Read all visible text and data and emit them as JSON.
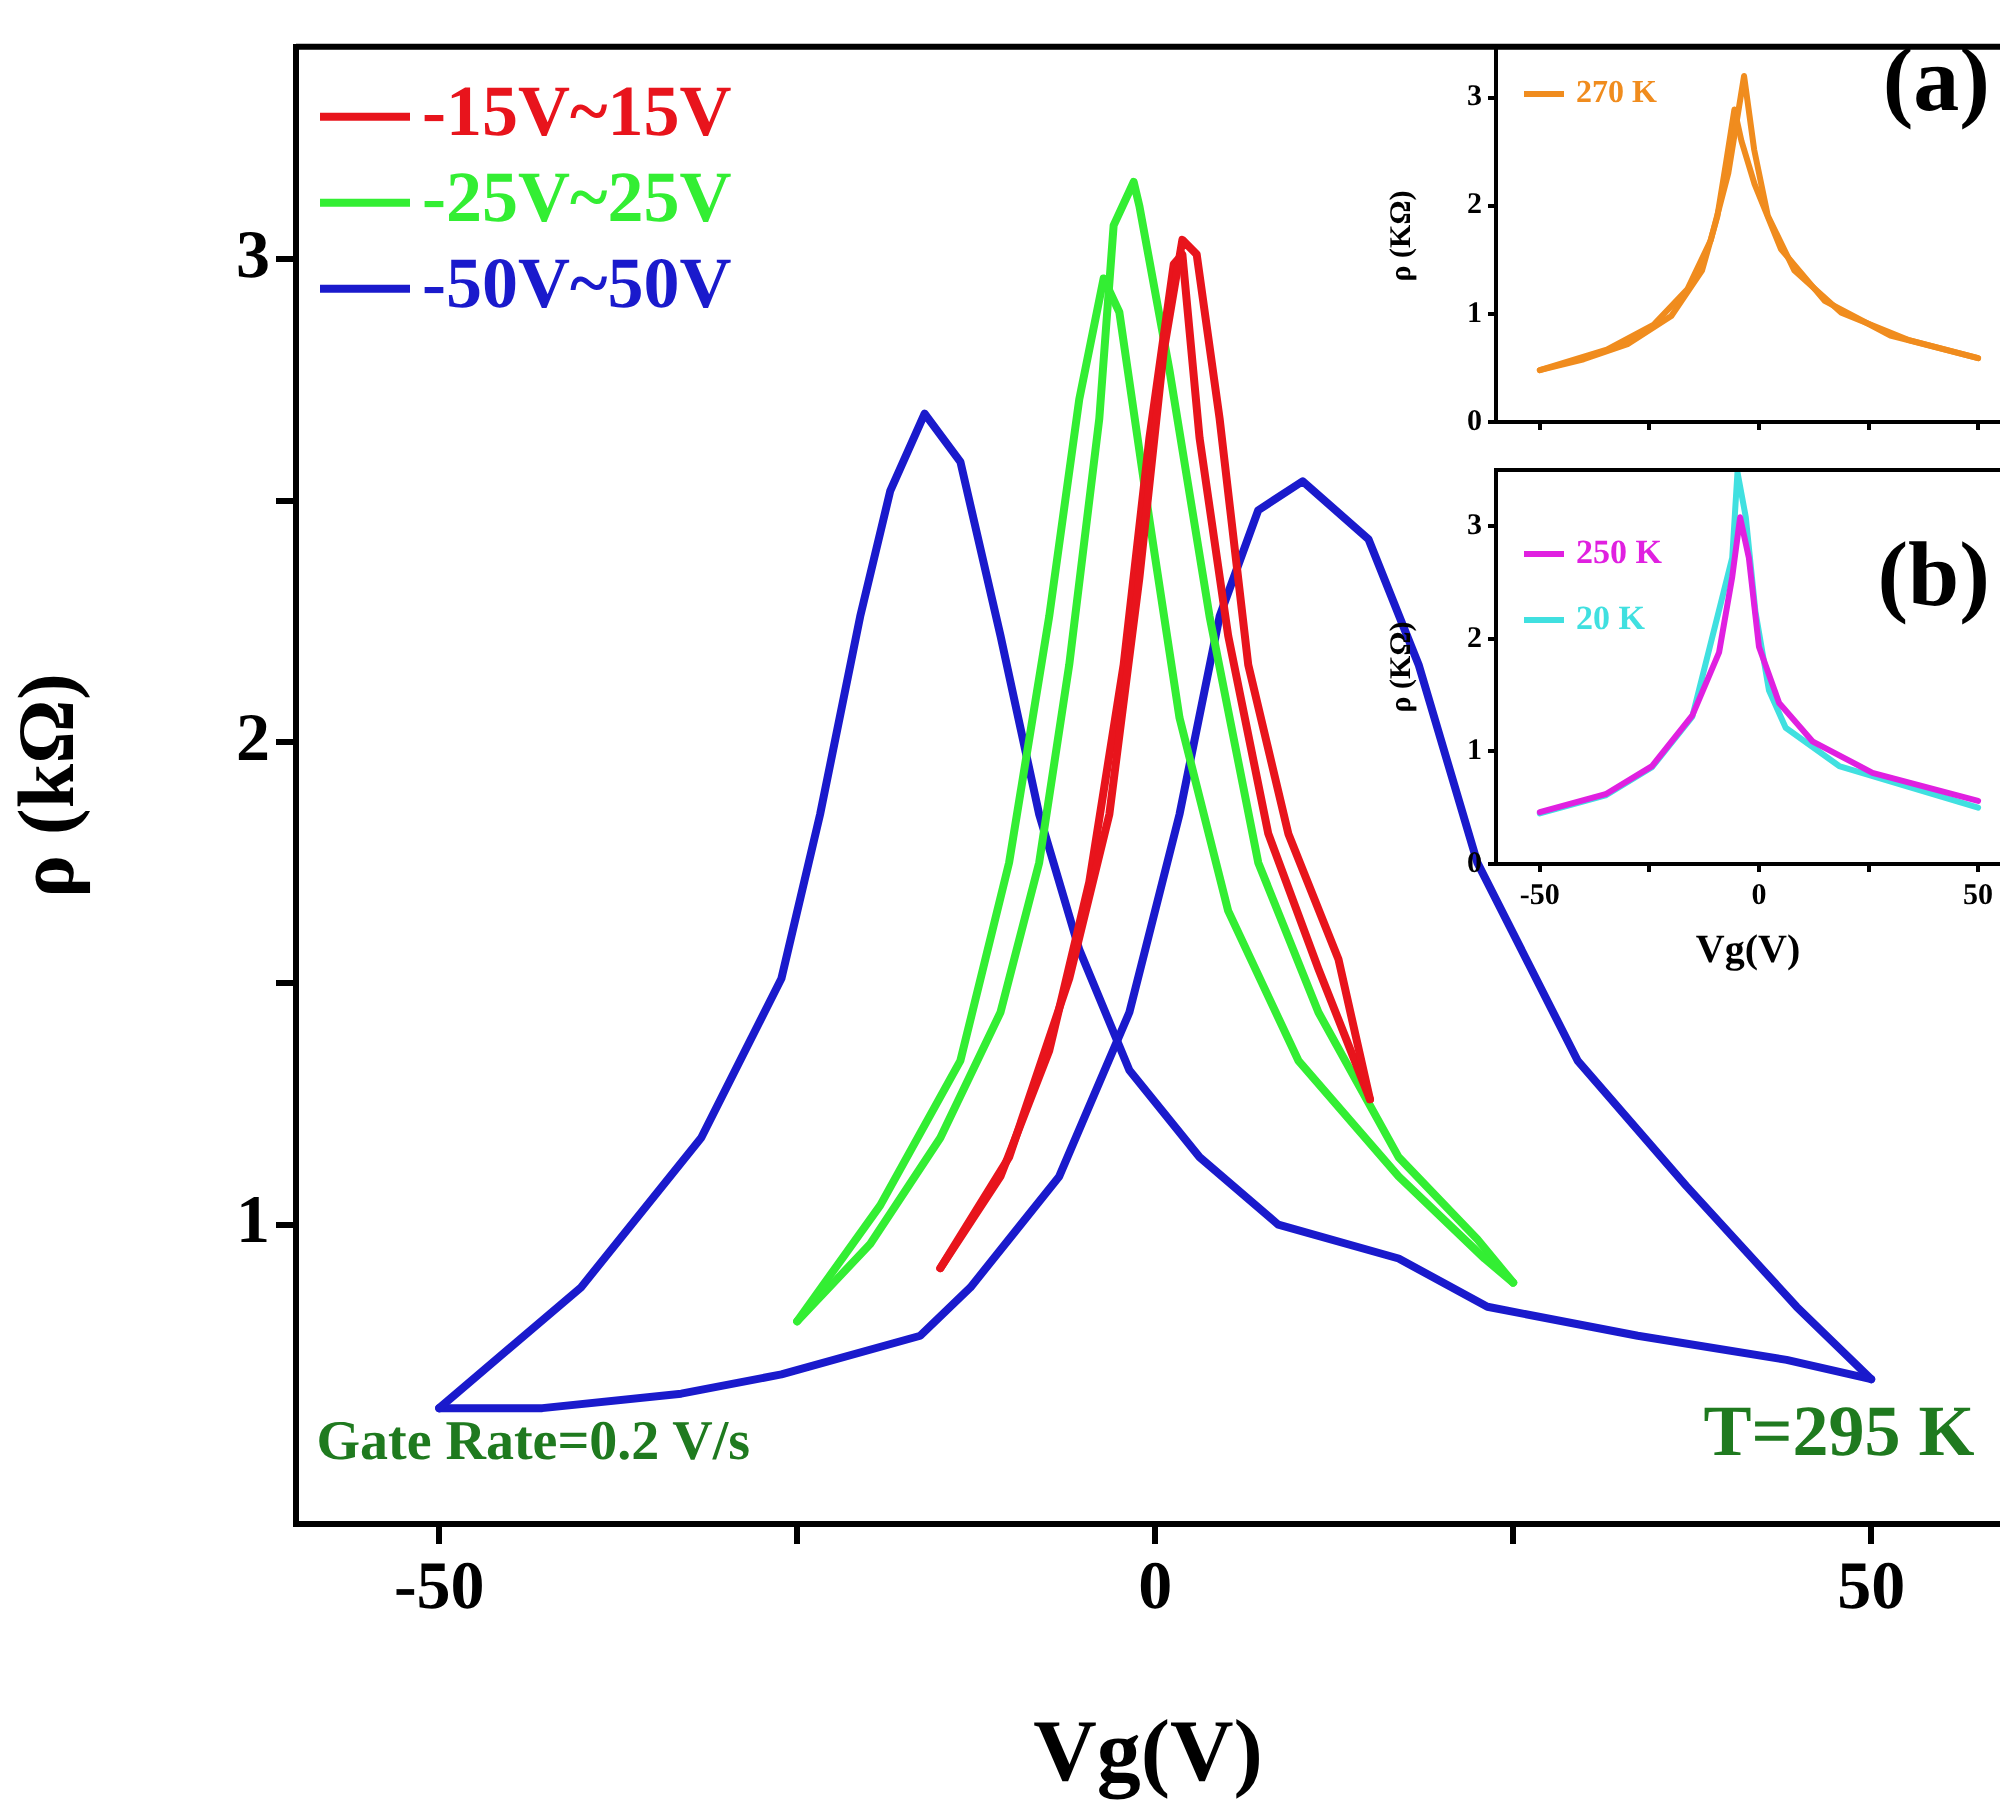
{
  "chart_data": [
    {
      "type": "line",
      "xlabel": "Vg(V)",
      "ylabel": "ρ (kΩ)",
      "xlim": [
        -60,
        59
      ],
      "ylim": [
        0.38,
        3.44
      ],
      "xticks": [
        -50,
        {
          "value": -25,
          "label": null
        },
        0,
        {
          "value": 25,
          "label": null
        },
        50
      ],
      "yticks": [
        1,
        {
          "value": 1.5,
          "label": null
        },
        2,
        {
          "value": 2.5,
          "label": null
        },
        3
      ],
      "legend": "top left",
      "annotations": [
        "Gate Rate=0.2 V/s",
        "T=295 K"
      ],
      "series": [
        {
          "name": "-15V~15V",
          "color": "#e8141c",
          "x": [
            -15,
            -10.2,
            -6,
            -3.2,
            -1.1,
            0.6,
            1.9,
            2.9,
            4.5,
            6.5,
            9.3,
            12.8,
            15
          ],
          "values": [
            0.91,
            1.14,
            1.51,
            1.85,
            2.34,
            2.81,
            3.04,
            3.01,
            2.67,
            2.16,
            1.81,
            1.55,
            1.26
          ]
        },
        {
          "color": "#e8141c",
          "x": [
            -15,
            -10.8,
            -7.4,
            -4.6,
            -2.2,
            -0.4,
            1.3,
            1.9,
            3.1,
            5.1,
            7.9,
            11.4,
            15
          ],
          "values": [
            0.91,
            1.1,
            1.36,
            1.71,
            2.16,
            2.63,
            2.99,
            3.01,
            2.63,
            2.22,
            1.81,
            1.53,
            1.26
          ]
        },
        {
          "name": "-25V~25V",
          "color": "#33ee33",
          "x": [
            -25,
            -19.2,
            -13.6,
            -10.2,
            -7.4,
            -5.3,
            -3.6,
            -2.5,
            -0.4,
            1.7,
            5.1,
            10,
            17,
            23,
            25
          ],
          "values": [
            0.8,
            1.04,
            1.34,
            1.75,
            2.26,
            2.71,
            2.96,
            2.89,
            2.46,
            2.05,
            1.65,
            1.34,
            1.1,
            0.93,
            0.88
          ]
        },
        {
          "color": "#33ee33",
          "x": [
            -25,
            -19.9,
            -15,
            -10.8,
            -8.1,
            -6,
            -3.9,
            -2.9,
            -1.5,
            -1.1,
            1,
            3.8,
            7.2,
            11.4,
            17,
            22.5,
            25
          ],
          "values": [
            0.8,
            0.96,
            1.18,
            1.44,
            1.75,
            2.16,
            2.67,
            3.07,
            3.16,
            3.11,
            2.77,
            2.26,
            1.75,
            1.44,
            1.14,
            0.97,
            0.88
          ]
        },
        {
          "name": "-50V~50V",
          "color": "#1a1acc",
          "x": [
            -50,
            -40.1,
            -31.7,
            -26.1,
            -23.4,
            -20.6,
            -18.5,
            -16.1,
            -13.6,
            -10.8,
            -8.1,
            -5.3,
            -1.8,
            3.1,
            8.6,
            17,
            23.2,
            33.7,
            44.1,
            50
          ],
          "values": [
            0.62,
            0.87,
            1.18,
            1.51,
            1.85,
            2.26,
            2.52,
            2.68,
            2.58,
            2.22,
            1.85,
            1.57,
            1.32,
            1.14,
            1.0,
            0.93,
            0.83,
            0.77,
            0.72,
            0.68
          ]
        },
        {
          "color": "#1a1acc",
          "x": [
            -50,
            -42.8,
            -33.1,
            -26.1,
            -16.4,
            -12.9,
            -6.7,
            -1.8,
            1.7,
            4.5,
            7.2,
            10.3,
            14.9,
            18.4,
            22.5,
            29.5,
            37.1,
            44.8,
            50
          ],
          "values": [
            0.62,
            0.62,
            0.65,
            0.69,
            0.77,
            0.87,
            1.1,
            1.44,
            1.85,
            2.26,
            2.48,
            2.54,
            2.42,
            2.16,
            1.75,
            1.34,
            1.08,
            0.83,
            0.68
          ]
        }
      ]
    },
    {
      "type": "line",
      "ylabel": "ρ (KΩ)",
      "xlim": [
        -60,
        55
      ],
      "ylim": [
        0,
        3.44
      ],
      "xticks": [
        {
          "value": -50,
          "label": null
        },
        {
          "value": -25,
          "label": null
        },
        {
          "value": 0,
          "label": null
        },
        {
          "value": 25,
          "label": null
        },
        {
          "value": 50,
          "label": null
        }
      ],
      "yticks": [
        0,
        1,
        2,
        3
      ],
      "tick_labels": "y",
      "legend": "top left",
      "annotations": [
        "(a)"
      ],
      "series": [
        {
          "name": "270 K",
          "color": "#f08c1e",
          "x": [
            -50,
            -34.7,
            -24,
            -16.3,
            -11,
            -7,
            -5,
            -3.4,
            -1.1,
            2,
            8.1,
            18.8,
            34,
            50
          ],
          "values": [
            0.48,
            0.67,
            0.9,
            1.23,
            1.68,
            2.3,
            2.8,
            3.2,
            2.52,
            1.91,
            1.4,
            1.01,
            0.76,
            0.59
          ]
        },
        {
          "color": "#f08c1e",
          "x": [
            -50,
            -40,
            -30,
            -20,
            -13,
            -9.5,
            -7.5,
            -5.6,
            -4,
            -1,
            5,
            15,
            30,
            50
          ],
          "values": [
            0.48,
            0.58,
            0.72,
            0.98,
            1.4,
            1.9,
            2.4,
            2.89,
            2.6,
            2.2,
            1.6,
            1.12,
            0.8,
            0.59
          ]
        }
      ]
    },
    {
      "type": "line",
      "xlabel": "Vg(V)",
      "ylabel": "ρ (KΩ)",
      "xlim": [
        -60,
        55
      ],
      "ylim": [
        0,
        3.5
      ],
      "xticks": [
        -50,
        {
          "value": -25,
          "label": null
        },
        0,
        {
          "value": 25,
          "label": null
        },
        50
      ],
      "yticks": [
        0,
        1,
        2,
        3
      ],
      "legend": "top left",
      "annotations": [
        "(b)"
      ],
      "series": [
        {
          "name": "250 K",
          "color": "#e020e0",
          "x": [
            -50,
            -35,
            -24.4,
            -15.2,
            -9.1,
            -6.1,
            -4.3,
            -2.3,
            0,
            4.6,
            12.2,
            25.9,
            50
          ],
          "values": [
            0.46,
            0.62,
            0.87,
            1.32,
            1.88,
            2.55,
            3.08,
            2.72,
            1.93,
            1.43,
            1.09,
            0.81,
            0.56
          ]
        },
        {
          "name": "20 K",
          "color": "#40e0e0",
          "x": [
            -50,
            -35,
            -24.4,
            -15.2,
            -9.1,
            -6.1,
            -4.9,
            -3,
            -0.8,
            2.3,
            6.1,
            18.3,
            50
          ],
          "values": [
            0.45,
            0.61,
            0.86,
            1.31,
            null,
            2.72,
            3.48,
            3.08,
            2.24,
            1.54,
            1.21,
            0.87,
            0.5
          ]
        }
      ]
    }
  ]
}
